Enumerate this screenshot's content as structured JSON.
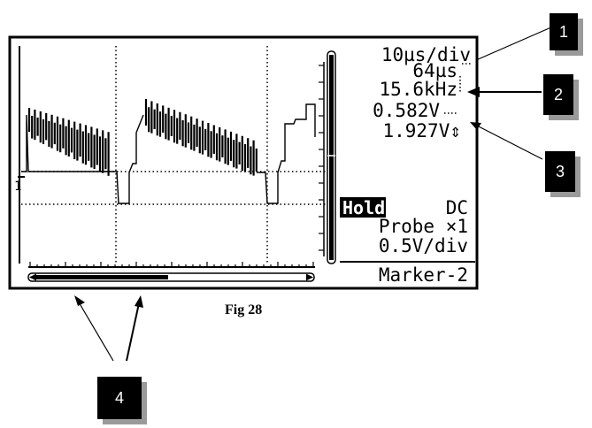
{
  "readouts": {
    "timebase": "10µs/div",
    "period": "64µs",
    "frequency": "15.6kHz",
    "voltage1": "0.582V",
    "voltage2": "1.927V⇕"
  },
  "status": {
    "hold": "Hold",
    "coupling": "DC",
    "probe": "Probe ×1",
    "volts_per_div": "0.5V/div",
    "menu": "Marker-2"
  },
  "channel_marker": "1",
  "caption": "Fig 28",
  "callouts": [
    "1",
    "2",
    "3",
    "4"
  ],
  "colors": {
    "ink": "#000000",
    "background": "#ffffff",
    "shadow": "#9a9a9a"
  }
}
